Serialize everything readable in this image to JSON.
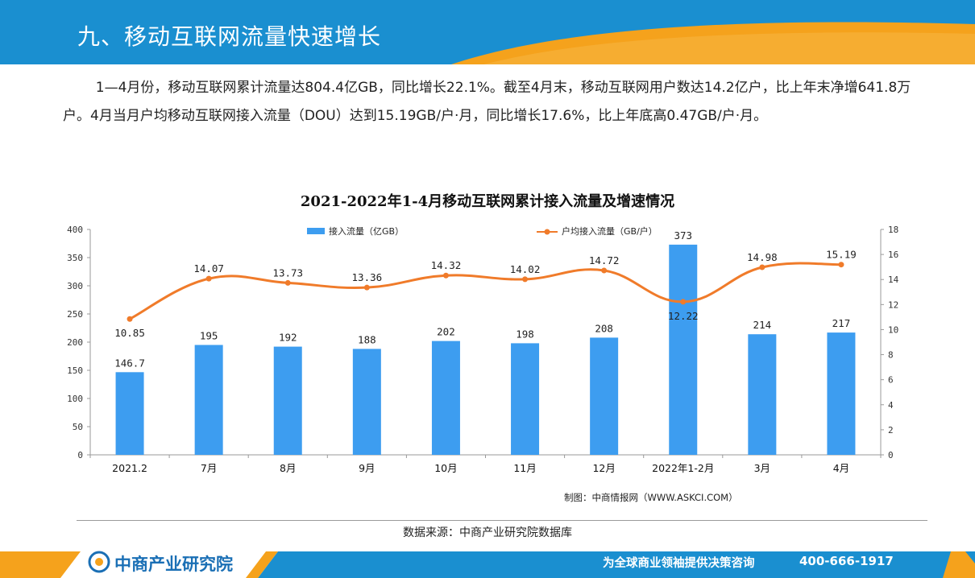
{
  "header": {
    "title": "九、移动互联网流量快速增长"
  },
  "intro": {
    "paragraph": "1—4月份，移动互联网累计流量达804.4亿GB，同比增长22.1%。截至4月末，移动互联网用户数达14.2亿户，比上年末净增641.8万户。4月当月户均移动互联网接入流量（DOU）达到15.19GB/户·月，同比增长17.6%，比上年底高0.47GB/户·月。"
  },
  "chart_data": {
    "type": "bar",
    "title": "2021-2022年1-4月移动互联网累计接入流量及增速情况",
    "categories": [
      "2021.2",
      "7月",
      "8月",
      "9月",
      "10月",
      "11月",
      "12月",
      "2022年1-2月",
      "3月",
      "4月"
    ],
    "series": [
      {
        "name": "接入流量（亿GB）",
        "type": "bar",
        "axis": "left",
        "color": "#3d9df0",
        "values": [
          146.7,
          195,
          192,
          188,
          202,
          198,
          208,
          373,
          214,
          217
        ],
        "labels": [
          "146.7",
          "195",
          "192",
          "188",
          "202",
          "198",
          "208",
          "373",
          "214",
          "217"
        ]
      },
      {
        "name": "户均接入流量（GB/户）",
        "type": "line",
        "axis": "right",
        "color": "#f07b2a",
        "values": [
          10.85,
          14.07,
          13.73,
          13.36,
          14.32,
          14.02,
          14.72,
          12.22,
          14.98,
          15.19
        ],
        "labels": [
          "10.85",
          "14.07",
          "13.73",
          "13.36",
          "14.32",
          "14.02",
          "14.72",
          "12.22",
          "14.98",
          "15.19"
        ]
      }
    ],
    "y_left": {
      "range": [
        0,
        400
      ],
      "ticks": [
        "0",
        "50",
        "100",
        "150",
        "200",
        "250",
        "300",
        "350",
        "400"
      ]
    },
    "y_right": {
      "range": [
        0,
        18
      ],
      "ticks": [
        "0",
        "2",
        "4",
        "6",
        "8",
        "10",
        "12",
        "14",
        "16",
        "18"
      ]
    },
    "legend_position": "top",
    "grid": false
  },
  "credit": "制图：中商情报网（WWW.ASKCI.COM）",
  "source": "数据来源：中商产业研究院数据库",
  "footer": {
    "brand": "中商产业研究院",
    "slogan": "为全球商业领袖提供决策咨询",
    "hotline": "400-666-1917",
    "colors": {
      "blue": "#1a8fd0",
      "orange": "#f5a21c"
    }
  }
}
